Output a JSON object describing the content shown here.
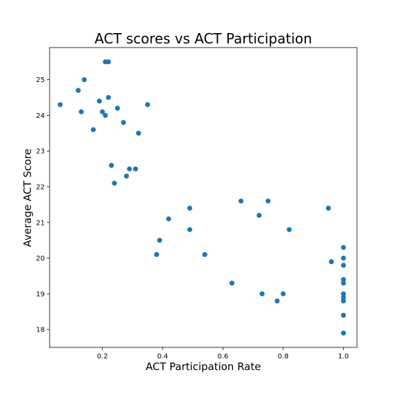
{
  "chart_data": {
    "type": "scatter",
    "title": "ACT scores vs ACT Participation",
    "xlabel": "ACT Participation Rate",
    "ylabel": "Average ACT Score",
    "xlim": [
      0.025,
      1.045
    ],
    "ylim": [
      17.5,
      25.9
    ],
    "xticks": [
      0.2,
      0.4,
      0.6,
      0.8,
      1.0
    ],
    "xtick_labels": [
      "0.2",
      "0.4",
      "0.6",
      "0.8",
      "1.0"
    ],
    "yticks": [
      18,
      19,
      20,
      21,
      22,
      23,
      24,
      25
    ],
    "ytick_labels": [
      "18",
      "19",
      "20",
      "21",
      "22",
      "23",
      "24",
      "25"
    ],
    "grid": false,
    "color": "#1f77b4",
    "series": [
      {
        "points": [
          [
            0.06,
            24.3
          ],
          [
            0.12,
            24.7
          ],
          [
            0.13,
            24.1
          ],
          [
            0.14,
            25.0
          ],
          [
            0.17,
            23.6
          ],
          [
            0.19,
            24.4
          ],
          [
            0.2,
            24.1
          ],
          [
            0.21,
            25.5
          ],
          [
            0.21,
            24.0
          ],
          [
            0.22,
            25.5
          ],
          [
            0.22,
            24.5
          ],
          [
            0.23,
            22.6
          ],
          [
            0.24,
            22.1
          ],
          [
            0.25,
            24.2
          ],
          [
            0.27,
            23.8
          ],
          [
            0.28,
            22.3
          ],
          [
            0.29,
            22.5
          ],
          [
            0.31,
            22.5
          ],
          [
            0.32,
            23.5
          ],
          [
            0.35,
            24.3
          ],
          [
            0.38,
            20.1
          ],
          [
            0.39,
            20.5
          ],
          [
            0.42,
            21.1
          ],
          [
            0.49,
            21.4
          ],
          [
            0.49,
            20.8
          ],
          [
            0.54,
            20.1
          ],
          [
            0.63,
            19.3
          ],
          [
            0.66,
            21.6
          ],
          [
            0.72,
            21.2
          ],
          [
            0.73,
            19.0
          ],
          [
            0.75,
            21.6
          ],
          [
            0.78,
            18.8
          ],
          [
            0.8,
            19.0
          ],
          [
            0.82,
            20.8
          ],
          [
            0.95,
            21.4
          ],
          [
            0.96,
            19.9
          ],
          [
            1.0,
            20.3
          ],
          [
            1.0,
            20.0
          ],
          [
            1.0,
            19.8
          ],
          [
            1.0,
            19.4
          ],
          [
            1.0,
            19.3
          ],
          [
            1.0,
            19.0
          ],
          [
            1.0,
            18.9
          ],
          [
            1.0,
            18.8
          ],
          [
            1.0,
            18.4
          ],
          [
            1.0,
            17.9
          ]
        ]
      }
    ]
  }
}
